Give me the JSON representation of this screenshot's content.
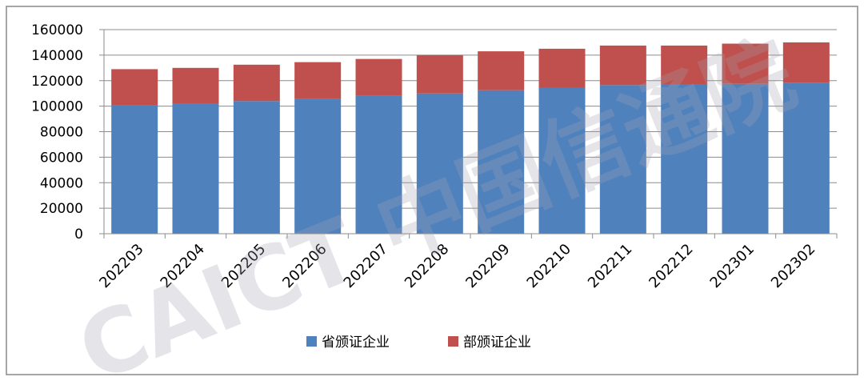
{
  "chart_data": {
    "type": "stacked_bar",
    "categories": [
      "202203",
      "202204",
      "202205",
      "202206",
      "202207",
      "202208",
      "202209",
      "202210",
      "202211",
      "202212",
      "202301",
      "202302"
    ],
    "series": [
      {
        "name": "省颁证企业",
        "color": "#4f81bd",
        "values": [
          101000,
          102000,
          104000,
          106000,
          108000,
          110000,
          112500,
          114500,
          116500,
          117000,
          117500,
          118500
        ]
      },
      {
        "name": "部颁证企业",
        "color": "#c0504d",
        "values": [
          28000,
          28000,
          28500,
          28500,
          29000,
          30000,
          30500,
          30500,
          31000,
          30500,
          31500,
          31500
        ]
      }
    ],
    "ylim": [
      0,
      160000
    ],
    "yticks": [
      0,
      20000,
      40000,
      60000,
      80000,
      100000,
      120000,
      140000,
      160000
    ],
    "grid": true,
    "legend": "bottom",
    "watermark": "CAICT 中国信通院"
  }
}
